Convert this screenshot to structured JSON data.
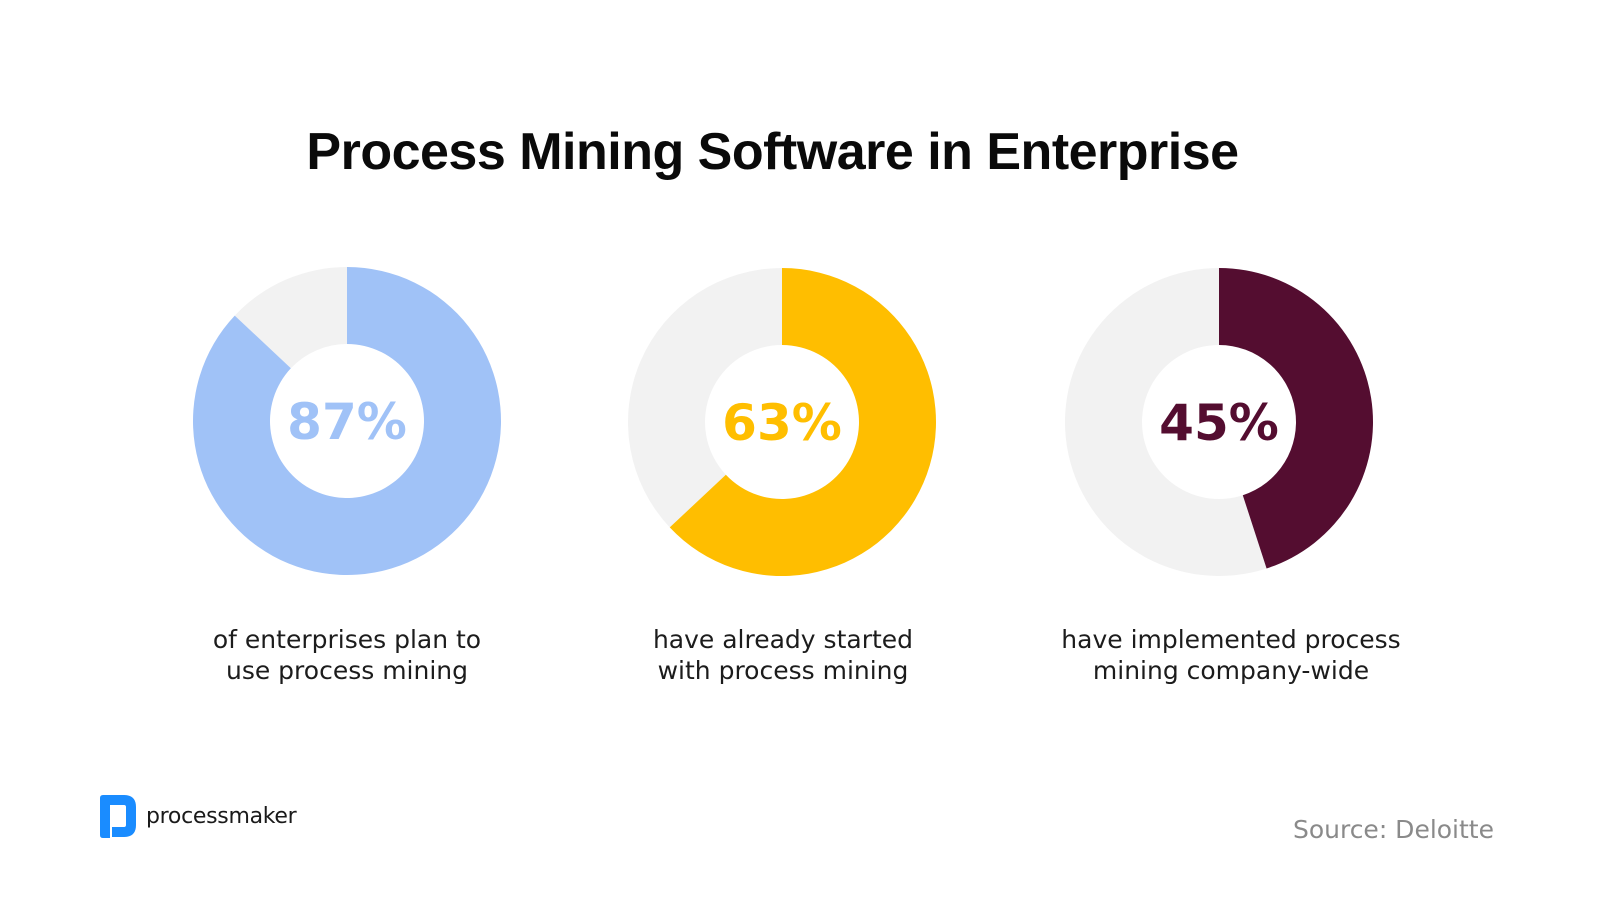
{
  "chart_data": {
    "type": "pie",
    "title": "Process Mining Software in Enterprise",
    "charts": [
      {
        "value": 87,
        "label": "87%",
        "caption": [
          "of enterprises plan to",
          "use process mining"
        ],
        "color": "#a0c2f7",
        "remainder_color": "#f2f2f2"
      },
      {
        "value": 63,
        "label": "63%",
        "caption": [
          "have already started",
          "with process mining"
        ],
        "color": "#ffbe00",
        "remainder_color": "#f2f2f2"
      },
      {
        "value": 45,
        "label": "45%",
        "caption": [
          "have implemented process",
          "mining company-wide"
        ],
        "color": "#540d30",
        "remainder_color": "#f2f2f2"
      }
    ]
  },
  "source": "Source: Deloitte",
  "logo": {
    "text": "processmaker",
    "color": "#1a8cff"
  }
}
